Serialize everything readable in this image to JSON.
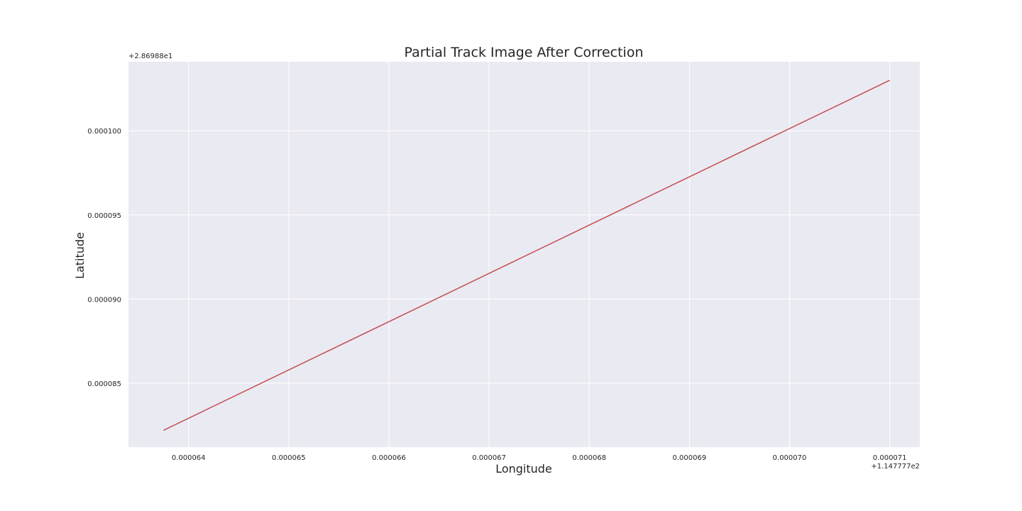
{
  "chart_data": {
    "type": "line",
    "title": "Partial Track Image After Correction",
    "xlabel": "Longitude",
    "ylabel": "Latitude",
    "x_offset_label": "+1.147777e2",
    "y_offset_label": "+2.86988e1",
    "x_ticks": [
      6.4e-05,
      6.5e-05,
      6.6e-05,
      6.7e-05,
      6.8e-05,
      6.9e-05,
      7e-05,
      7.1e-05
    ],
    "x_tick_labels": [
      "0.000064",
      "0.000065",
      "0.000066",
      "0.000067",
      "0.000068",
      "0.000069",
      "0.000070",
      "0.000071"
    ],
    "y_ticks": [
      8.5e-05,
      9e-05,
      9.5e-05,
      0.0001
    ],
    "y_tick_labels": [
      "0.000085",
      "0.000090",
      "0.000095",
      "0.000100"
    ],
    "xlim": [
      6.34e-05,
      7.13e-05
    ],
    "ylim": [
      8.12e-05,
      0.0001041
    ],
    "grid": true,
    "legend": "none",
    "colors": {
      "background": "#eaeaf2",
      "grid": "#ffffff",
      "line": "#c44e52",
      "text": "#262626"
    },
    "series": [
      {
        "x": [
          6.375e-05,
          7.1e-05
        ],
        "y": [
          8.22e-05,
          0.000103
        ]
      }
    ]
  }
}
